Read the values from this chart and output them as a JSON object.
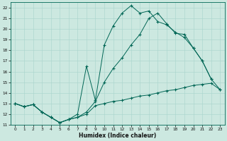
{
  "xlabel": "Humidex (Indice chaleur)",
  "bg": "#cce8e0",
  "grid_color": "#a8d4cc",
  "line_color": "#006655",
  "xlim": [
    -0.5,
    23.5
  ],
  "ylim": [
    11,
    22.5
  ],
  "xticks": [
    0,
    1,
    2,
    3,
    4,
    5,
    6,
    7,
    8,
    9,
    10,
    11,
    12,
    13,
    14,
    15,
    16,
    17,
    18,
    19,
    20,
    21,
    22,
    23
  ],
  "yticks": [
    11,
    12,
    13,
    14,
    15,
    16,
    17,
    18,
    19,
    20,
    21,
    22
  ],
  "line1_x": [
    0,
    1,
    2,
    3,
    4,
    5,
    6,
    7,
    8,
    9,
    10,
    11,
    12,
    13,
    14,
    15,
    16,
    17,
    18,
    19,
    20,
    21,
    22,
    23
  ],
  "line1_y": [
    13.0,
    12.7,
    12.9,
    12.2,
    11.7,
    11.2,
    11.5,
    11.7,
    12.0,
    12.8,
    13.0,
    13.2,
    13.3,
    13.5,
    13.7,
    13.8,
    14.0,
    14.2,
    14.3,
    14.5,
    14.7,
    14.8,
    14.9,
    14.3
  ],
  "line2_x": [
    0,
    1,
    2,
    3,
    4,
    5,
    6,
    7,
    8,
    9,
    10,
    11,
    12,
    13,
    14,
    15,
    16,
    17,
    18,
    19,
    20,
    21,
    22
  ],
  "line2_y": [
    13.0,
    12.7,
    12.9,
    12.2,
    11.7,
    11.2,
    11.5,
    12.0,
    16.5,
    13.3,
    18.5,
    20.3,
    21.5,
    22.2,
    21.5,
    21.7,
    20.7,
    20.4,
    19.7,
    19.2,
    18.2,
    17.0,
    15.3
  ],
  "line3_x": [
    0,
    1,
    2,
    3,
    4,
    5,
    6,
    7,
    8,
    9,
    10,
    11,
    12,
    13,
    14,
    15,
    16,
    17,
    18,
    19,
    20,
    21,
    22,
    23
  ],
  "line3_y": [
    13.0,
    12.7,
    12.9,
    12.2,
    11.7,
    11.2,
    11.5,
    11.7,
    12.2,
    13.2,
    15.0,
    16.3,
    17.3,
    18.5,
    19.5,
    21.0,
    21.5,
    20.5,
    19.6,
    19.5,
    18.2,
    17.0,
    15.3,
    14.3
  ]
}
